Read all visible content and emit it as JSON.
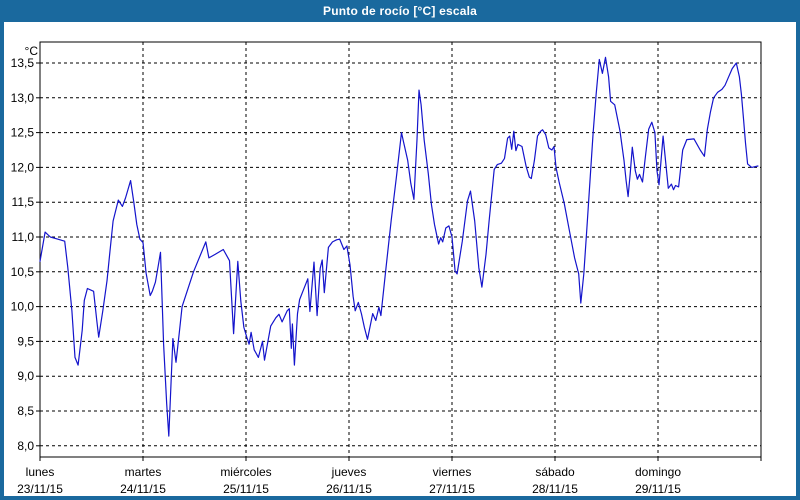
{
  "window": {
    "title": "Punto de rocío [°C] escala"
  },
  "colors": {
    "frame": "#1a699e",
    "title_text": "#ffffff",
    "plot_background": "#ffffff",
    "line": "#1414cc",
    "grid": "#000000",
    "text": "#000000"
  },
  "chart_data": {
    "type": "line",
    "title": "Punto de rocío [°C] escala",
    "grid": "dashed",
    "legend": "none",
    "y_axis": {
      "unit": "°C",
      "min": 8.0,
      "max": 13.5,
      "tick_step": 0.5,
      "decimal_separator": ",",
      "tick_labels": [
        "13,5",
        "13,0",
        "12,5",
        "12,0",
        "11,5",
        "11,0",
        "10,5",
        "10,0",
        "9,5",
        "9,0",
        "8,5",
        "8,0"
      ]
    },
    "x_axis": {
      "days": [
        {
          "name": "lunes",
          "date": "23/11/15"
        },
        {
          "name": "martes",
          "date": "24/11/15"
        },
        {
          "name": "miércoles",
          "date": "25/11/15"
        },
        {
          "name": "jueves",
          "date": "26/11/15"
        },
        {
          "name": "viernes",
          "date": "27/11/15"
        },
        {
          "name": "sábado",
          "date": "28/11/15"
        },
        {
          "name": "domingo",
          "date": "29/11/15"
        }
      ]
    },
    "series": [
      {
        "name": "Punto de rocío [°C]",
        "color": "#1414cc",
        "x_unit": "days since 23/11/15",
        "points": [
          [
            0.0,
            10.65
          ],
          [
            0.05,
            11.07
          ],
          [
            0.1,
            11.0
          ],
          [
            0.17,
            10.97
          ],
          [
            0.24,
            10.94
          ],
          [
            0.27,
            10.56
          ],
          [
            0.31,
            9.94
          ],
          [
            0.34,
            9.27
          ],
          [
            0.37,
            9.16
          ],
          [
            0.41,
            9.66
          ],
          [
            0.43,
            10.09
          ],
          [
            0.46,
            10.26
          ],
          [
            0.52,
            10.22
          ],
          [
            0.55,
            9.81
          ],
          [
            0.57,
            9.56
          ],
          [
            0.61,
            9.94
          ],
          [
            0.65,
            10.37
          ],
          [
            0.68,
            10.8
          ],
          [
            0.71,
            11.23
          ],
          [
            0.76,
            11.53
          ],
          [
            0.8,
            11.44
          ],
          [
            0.83,
            11.56
          ],
          [
            0.88,
            11.81
          ],
          [
            0.91,
            11.51
          ],
          [
            0.94,
            11.18
          ],
          [
            0.97,
            10.97
          ],
          [
            1.0,
            10.92
          ],
          [
            1.03,
            10.48
          ],
          [
            1.07,
            10.16
          ],
          [
            1.09,
            10.22
          ],
          [
            1.12,
            10.35
          ],
          [
            1.15,
            10.6
          ],
          [
            1.17,
            10.78
          ],
          [
            1.2,
            9.46
          ],
          [
            1.23,
            8.6
          ],
          [
            1.25,
            8.14
          ],
          [
            1.29,
            9.54
          ],
          [
            1.32,
            9.2
          ],
          [
            1.35,
            9.6
          ],
          [
            1.38,
            10.0
          ],
          [
            1.49,
            10.5
          ],
          [
            1.61,
            10.93
          ],
          [
            1.64,
            10.7
          ],
          [
            1.7,
            10.75
          ],
          [
            1.78,
            10.82
          ],
          [
            1.84,
            10.66
          ],
          [
            1.88,
            9.61
          ],
          [
            1.92,
            10.65
          ],
          [
            1.95,
            10.08
          ],
          [
            1.98,
            9.7
          ],
          [
            2.01,
            9.55
          ],
          [
            2.03,
            9.46
          ],
          [
            2.05,
            9.63
          ],
          [
            2.08,
            9.38
          ],
          [
            2.12,
            9.27
          ],
          [
            2.16,
            9.5
          ],
          [
            2.18,
            9.23
          ],
          [
            2.24,
            9.72
          ],
          [
            2.29,
            9.84
          ],
          [
            2.32,
            9.89
          ],
          [
            2.35,
            9.78
          ],
          [
            2.4,
            9.94
          ],
          [
            2.42,
            9.97
          ],
          [
            2.44,
            9.4
          ],
          [
            2.45,
            9.75
          ],
          [
            2.47,
            9.16
          ],
          [
            2.5,
            9.9
          ],
          [
            2.52,
            10.1
          ],
          [
            2.56,
            10.25
          ],
          [
            2.6,
            10.4
          ],
          [
            2.62,
            9.93
          ],
          [
            2.65,
            10.45
          ],
          [
            2.66,
            10.64
          ],
          [
            2.69,
            9.87
          ],
          [
            2.72,
            10.55
          ],
          [
            2.74,
            10.67
          ],
          [
            2.76,
            10.2
          ],
          [
            2.8,
            10.85
          ],
          [
            2.84,
            10.93
          ],
          [
            2.88,
            10.96
          ],
          [
            2.91,
            10.97
          ],
          [
            2.95,
            10.82
          ],
          [
            2.98,
            10.87
          ],
          [
            3.01,
            10.6
          ],
          [
            3.04,
            10.15
          ],
          [
            3.06,
            9.94
          ],
          [
            3.09,
            10.06
          ],
          [
            3.12,
            9.9
          ],
          [
            3.15,
            9.7
          ],
          [
            3.18,
            9.53
          ],
          [
            3.23,
            9.9
          ],
          [
            3.26,
            9.8
          ],
          [
            3.29,
            9.99
          ],
          [
            3.31,
            9.87
          ],
          [
            3.36,
            10.57
          ],
          [
            3.41,
            11.24
          ],
          [
            3.46,
            11.86
          ],
          [
            3.51,
            12.5
          ],
          [
            3.53,
            12.36
          ],
          [
            3.57,
            12.1
          ],
          [
            3.6,
            11.77
          ],
          [
            3.63,
            11.54
          ],
          [
            3.66,
            12.4
          ],
          [
            3.68,
            13.11
          ],
          [
            3.7,
            12.9
          ],
          [
            3.73,
            12.39
          ],
          [
            3.77,
            11.91
          ],
          [
            3.8,
            11.47
          ],
          [
            3.83,
            11.18
          ],
          [
            3.87,
            10.9
          ],
          [
            3.89,
            10.99
          ],
          [
            3.91,
            10.93
          ],
          [
            3.94,
            11.13
          ],
          [
            3.97,
            11.16
          ],
          [
            4.0,
            11.0
          ],
          [
            4.03,
            10.51
          ],
          [
            4.05,
            10.47
          ],
          [
            4.1,
            10.94
          ],
          [
            4.15,
            11.52
          ],
          [
            4.18,
            11.66
          ],
          [
            4.22,
            11.23
          ],
          [
            4.26,
            10.56
          ],
          [
            4.29,
            10.28
          ],
          [
            4.33,
            10.75
          ],
          [
            4.36,
            11.23
          ],
          [
            4.38,
            11.52
          ],
          [
            4.41,
            11.97
          ],
          [
            4.44,
            12.04
          ],
          [
            4.48,
            12.06
          ],
          [
            4.51,
            12.13
          ],
          [
            4.54,
            12.42
          ],
          [
            4.56,
            12.45
          ],
          [
            4.58,
            12.26
          ],
          [
            4.6,
            12.52
          ],
          [
            4.62,
            12.24
          ],
          [
            4.64,
            12.33
          ],
          [
            4.68,
            12.3
          ],
          [
            4.72,
            12.01
          ],
          [
            4.75,
            11.86
          ],
          [
            4.77,
            11.84
          ],
          [
            4.8,
            12.1
          ],
          [
            4.83,
            12.45
          ],
          [
            4.86,
            12.52
          ],
          [
            4.88,
            12.54
          ],
          [
            4.91,
            12.47
          ],
          [
            4.94,
            12.28
          ],
          [
            4.97,
            12.25
          ],
          [
            4.99,
            12.3
          ],
          [
            5.01,
            12.0
          ],
          [
            5.04,
            11.79
          ],
          [
            5.09,
            11.48
          ],
          [
            5.14,
            11.09
          ],
          [
            5.19,
            10.7
          ],
          [
            5.23,
            10.47
          ],
          [
            5.25,
            10.05
          ],
          [
            5.28,
            10.47
          ],
          [
            5.31,
            11.13
          ],
          [
            5.34,
            11.81
          ],
          [
            5.37,
            12.49
          ],
          [
            5.4,
            13.06
          ],
          [
            5.43,
            13.55
          ],
          [
            5.46,
            13.35
          ],
          [
            5.49,
            13.58
          ],
          [
            5.52,
            13.3
          ],
          [
            5.54,
            12.95
          ],
          [
            5.58,
            12.9
          ],
          [
            5.63,
            12.53
          ],
          [
            5.67,
            12.1
          ],
          [
            5.69,
            11.81
          ],
          [
            5.71,
            11.58
          ],
          [
            5.73,
            11.91
          ],
          [
            5.75,
            12.29
          ],
          [
            5.78,
            11.95
          ],
          [
            5.8,
            11.83
          ],
          [
            5.82,
            11.9
          ],
          [
            5.85,
            11.79
          ],
          [
            5.88,
            12.18
          ],
          [
            5.91,
            12.55
          ],
          [
            5.94,
            12.65
          ],
          [
            5.97,
            12.5
          ],
          [
            5.99,
            11.95
          ],
          [
            6.01,
            11.75
          ],
          [
            6.05,
            12.45
          ],
          [
            6.08,
            12.0
          ],
          [
            6.1,
            11.7
          ],
          [
            6.13,
            11.76
          ],
          [
            6.15,
            11.68
          ],
          [
            6.17,
            11.74
          ],
          [
            6.2,
            11.72
          ],
          [
            6.24,
            12.25
          ],
          [
            6.28,
            12.4
          ],
          [
            6.35,
            12.41
          ],
          [
            6.41,
            12.25
          ],
          [
            6.45,
            12.16
          ],
          [
            6.48,
            12.55
          ],
          [
            6.51,
            12.8
          ],
          [
            6.54,
            13.0
          ],
          [
            6.58,
            13.08
          ],
          [
            6.62,
            13.12
          ],
          [
            6.65,
            13.18
          ],
          [
            6.68,
            13.28
          ],
          [
            6.72,
            13.42
          ],
          [
            6.76,
            13.5
          ],
          [
            6.79,
            13.3
          ],
          [
            6.81,
            13.05
          ],
          [
            6.83,
            12.7
          ],
          [
            6.85,
            12.35
          ],
          [
            6.87,
            12.05
          ],
          [
            6.91,
            12.0
          ],
          [
            6.97,
            12.02
          ]
        ]
      }
    ]
  }
}
